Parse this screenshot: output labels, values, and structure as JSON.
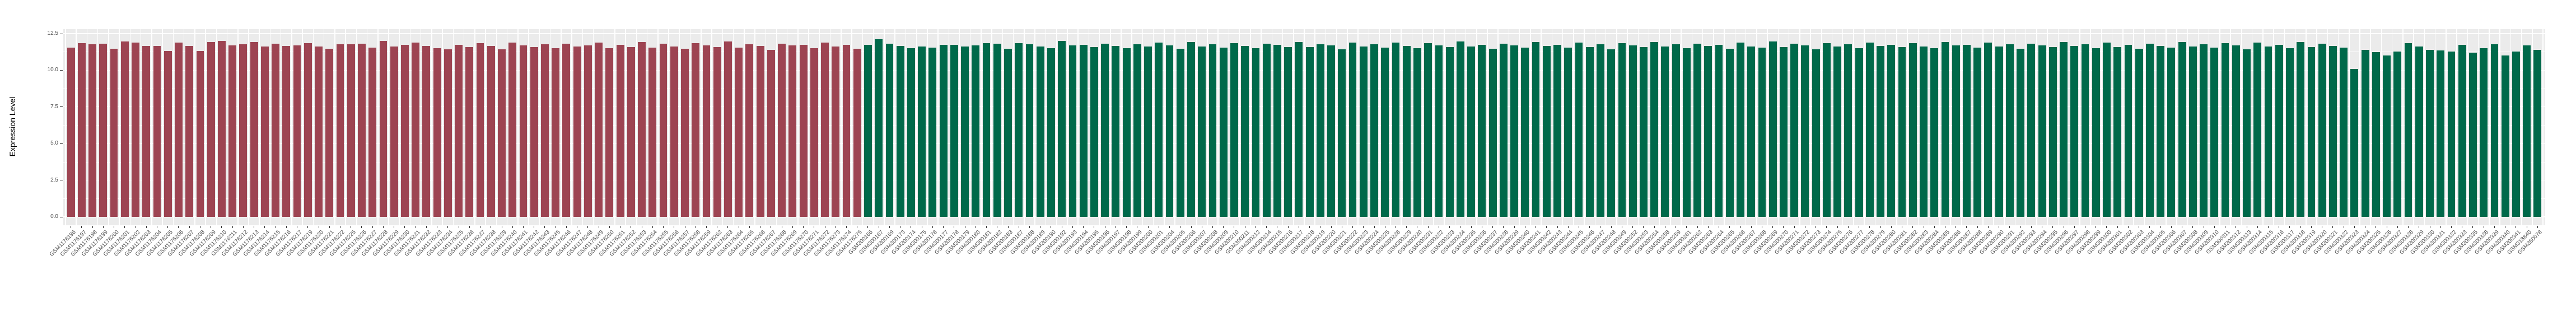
{
  "chart_data": {
    "type": "bar",
    "title": "",
    "xlabel": "",
    "ylabel": "Expression Level",
    "ylim": [
      0,
      12.5
    ],
    "ytick_labels": [
      "0.0",
      "2.5",
      "5.0",
      "7.5",
      "10.0",
      "12.5"
    ],
    "ytick_values": [
      0,
      2.5,
      5,
      7.5,
      10,
      12.5
    ],
    "yminor_values": [
      1.25,
      3.75,
      6.25,
      8.75,
      11.25
    ],
    "grid": true,
    "legend_position": "none",
    "panel_background": "#EBEBEB",
    "grid_color": "#FFFFFF",
    "axis_text_color": "#4D4D4D",
    "group_split_index": 74,
    "group_colors": {
      "left_group": "#9D4452",
      "right_group": "#00694A"
    },
    "categories": [
      "GSM1176196",
      "GSM1176197",
      "GSM1176198",
      "GSM1176199",
      "GSM1176200",
      "GSM1176201",
      "GSM1176202",
      "GSM1176203",
      "GSM1176204",
      "GSM1176205",
      "GSM1176206",
      "GSM1176207",
      "GSM1176208",
      "GSM1176209",
      "GSM1176210",
      "GSM1176211",
      "GSM1176212",
      "GSM1176213",
      "GSM1176214",
      "GSM1176215",
      "GSM1176216",
      "GSM1176217",
      "GSM1176219",
      "GSM1176220",
      "GSM1176221",
      "GSM1176222",
      "GSM1176225",
      "GSM1176226",
      "GSM1176227",
      "GSM1176228",
      "GSM1176229",
      "GSM1176230",
      "GSM1176231",
      "GSM1176232",
      "GSM1176233",
      "GSM1176234",
      "GSM1176235",
      "GSM1176236",
      "GSM1176237",
      "GSM1176238",
      "GSM1176239",
      "GSM1176240",
      "GSM1176241",
      "GSM1176242",
      "GSM1176243",
      "GSM1176245",
      "GSM1176246",
      "GSM1176247",
      "GSM1176248",
      "GSM1176249",
      "GSM1176250",
      "GSM1176251",
      "GSM1176252",
      "GSM1176253",
      "GSM1176254",
      "GSM1176255",
      "GSM1176256",
      "GSM1176257",
      "GSM1176258",
      "GSM1176259",
      "GSM1176262",
      "GSM1176263",
      "GSM1176264",
      "GSM1176265",
      "GSM1176266",
      "GSM1176267",
      "GSM1176268",
      "GSM1176269",
      "GSM1176270",
      "GSM1176271",
      "GSM1176272",
      "GSM1176273",
      "GSM1176274",
      "GSM1176275",
      "GSM300166",
      "GSM300167",
      "GSM300169",
      "GSM300173",
      "GSM300174",
      "GSM300175",
      "GSM300176",
      "GSM300177",
      "GSM300178",
      "GSM300179",
      "GSM300180",
      "GSM300181",
      "GSM300182",
      "GSM300183",
      "GSM300187",
      "GSM300188",
      "GSM300189",
      "GSM300190",
      "GSM300192",
      "GSM300193",
      "GSM300194",
      "GSM300195",
      "GSM300196",
      "GSM300197",
      "GSM300198",
      "GSM300199",
      "GSM300200",
      "GSM300201",
      "GSM300204",
      "GSM300205",
      "GSM300206",
      "GSM300207",
      "GSM300208",
      "GSM300209",
      "GSM300210",
      "GSM300211",
      "GSM300212",
      "GSM300214",
      "GSM300215",
      "GSM300216",
      "GSM300217",
      "GSM300218",
      "GSM300219",
      "GSM300220",
      "GSM300221",
      "GSM300222",
      "GSM300223",
      "GSM300224",
      "GSM300225",
      "GSM300226",
      "GSM300229",
      "GSM300230",
      "GSM300231",
      "GSM300232",
      "GSM300233",
      "GSM300234",
      "GSM300235",
      "GSM300236",
      "GSM300237",
      "GSM300238",
      "GSM300239",
      "GSM300240",
      "GSM300241",
      "GSM300242",
      "GSM300243",
      "GSM300244",
      "GSM300245",
      "GSM300246",
      "GSM300247",
      "GSM300248",
      "GSM300249",
      "GSM300252",
      "GSM300253",
      "GSM300254",
      "GSM300258",
      "GSM300259",
      "GSM300261",
      "GSM300262",
      "GSM300263",
      "GSM300264",
      "GSM300265",
      "GSM300266",
      "GSM300267",
      "GSM300268",
      "GSM300269",
      "GSM300270",
      "GSM300271",
      "GSM300272",
      "GSM300273",
      "GSM300274",
      "GSM300275",
      "GSM300276",
      "GSM300277",
      "GSM300278",
      "GSM300279",
      "GSM300280",
      "GSM300281",
      "GSM300282",
      "GSM300283",
      "GSM300284",
      "GSM300285",
      "GSM300286",
      "GSM300287",
      "GSM300288",
      "GSM300289",
      "GSM300290",
      "GSM300291",
      "GSM300292",
      "GSM300293",
      "GSM300294",
      "GSM300295",
      "GSM300296",
      "GSM300297",
      "GSM300298",
      "GSM300299",
      "GSM300300",
      "GSM300301",
      "GSM300302",
      "GSM300303",
      "GSM300304",
      "GSM300305",
      "GSM300306",
      "GSM300307",
      "GSM300308",
      "GSM300309",
      "GSM300310",
      "GSM300311",
      "GSM300312",
      "GSM300313",
      "GSM300314",
      "GSM300315",
      "GSM300316",
      "GSM300317",
      "GSM300318",
      "GSM300319",
      "GSM300320",
      "GSM300321",
      "GSM300322",
      "GSM300323",
      "GSM300324",
      "GSM300325",
      "GSM300326",
      "GSM300327",
      "GSM300328",
      "GSM300329",
      "GSM300330",
      "GSM300331",
      "GSM300332",
      "GSM300333",
      "GSM300335",
      "GSM300338",
      "GSM300339",
      "GSM300340",
      "GSM300341",
      "GSM318840",
      "GSM350078"
    ],
    "values": [
      11.54,
      11.84,
      11.77,
      11.82,
      11.46,
      11.95,
      11.89,
      11.66,
      11.67,
      11.33,
      11.88,
      11.65,
      11.32,
      11.92,
      12.0,
      11.68,
      11.78,
      11.92,
      11.64,
      11.8,
      11.67,
      11.68,
      11.84,
      11.61,
      11.48,
      11.78,
      11.79,
      11.8,
      11.55,
      12.02,
      11.62,
      11.72,
      11.88,
      11.66,
      11.5,
      11.42,
      11.73,
      11.57,
      11.86,
      11.65,
      11.44,
      11.9,
      11.69,
      11.58,
      11.76,
      11.52,
      11.83,
      11.61,
      11.7,
      11.87,
      11.49,
      11.74,
      11.6,
      11.93,
      11.56,
      11.81,
      11.63,
      11.47,
      11.85,
      11.71,
      11.59,
      11.96,
      11.53,
      11.77,
      11.66,
      11.4,
      11.82,
      11.68,
      11.75,
      11.51,
      11.89,
      11.64,
      11.72,
      11.45,
      11.75,
      12.1,
      11.8,
      11.65,
      11.5,
      11.62,
      11.55,
      11.72,
      11.72,
      11.62,
      11.7,
      11.85,
      11.82,
      11.45,
      11.85,
      11.78,
      11.62,
      11.5,
      12.0,
      11.68,
      11.74,
      11.58,
      11.83,
      11.66,
      11.52,
      11.77,
      11.61,
      11.88,
      11.7,
      11.46,
      11.92,
      11.64,
      11.79,
      11.55,
      11.86,
      11.67,
      11.49,
      11.81,
      11.73,
      11.6,
      11.94,
      11.57,
      11.76,
      11.69,
      11.43,
      11.87,
      11.63,
      11.78,
      11.54,
      11.9,
      11.66,
      11.51,
      11.84,
      11.71,
      11.59,
      11.96,
      11.62,
      11.75,
      11.47,
      11.82,
      11.68,
      11.56,
      11.91,
      11.65,
      11.74,
      11.53,
      11.88,
      11.6,
      11.79,
      11.44,
      11.85,
      11.7,
      11.58,
      11.93,
      11.61,
      11.76,
      11.5,
      11.83,
      11.67,
      11.72,
      11.48,
      11.89,
      11.64,
      11.55,
      11.95,
      11.59,
      11.8,
      11.69,
      11.42,
      11.86,
      11.63,
      11.77,
      11.52,
      11.9,
      11.66,
      11.73,
      11.57,
      11.84,
      11.61,
      11.49,
      11.92,
      11.68,
      11.75,
      11.54,
      11.87,
      11.62,
      11.79,
      11.45,
      11.81,
      11.7,
      11.58,
      11.94,
      11.65,
      11.76,
      11.51,
      11.88,
      11.6,
      11.72,
      11.47,
      11.83,
      11.67,
      11.56,
      11.91,
      11.63,
      11.78,
      11.53,
      11.85,
      11.69,
      11.44,
      11.89,
      11.64,
      11.74,
      11.5,
      11.93,
      11.59,
      11.8,
      11.66,
      11.55,
      10.08,
      11.39,
      11.23,
      11.01,
      11.27,
      11.84,
      11.61,
      11.4,
      11.35,
      11.27,
      11.73,
      11.2,
      11.51,
      11.78,
      11.0,
      11.27,
      11.71,
      11.4
    ]
  }
}
